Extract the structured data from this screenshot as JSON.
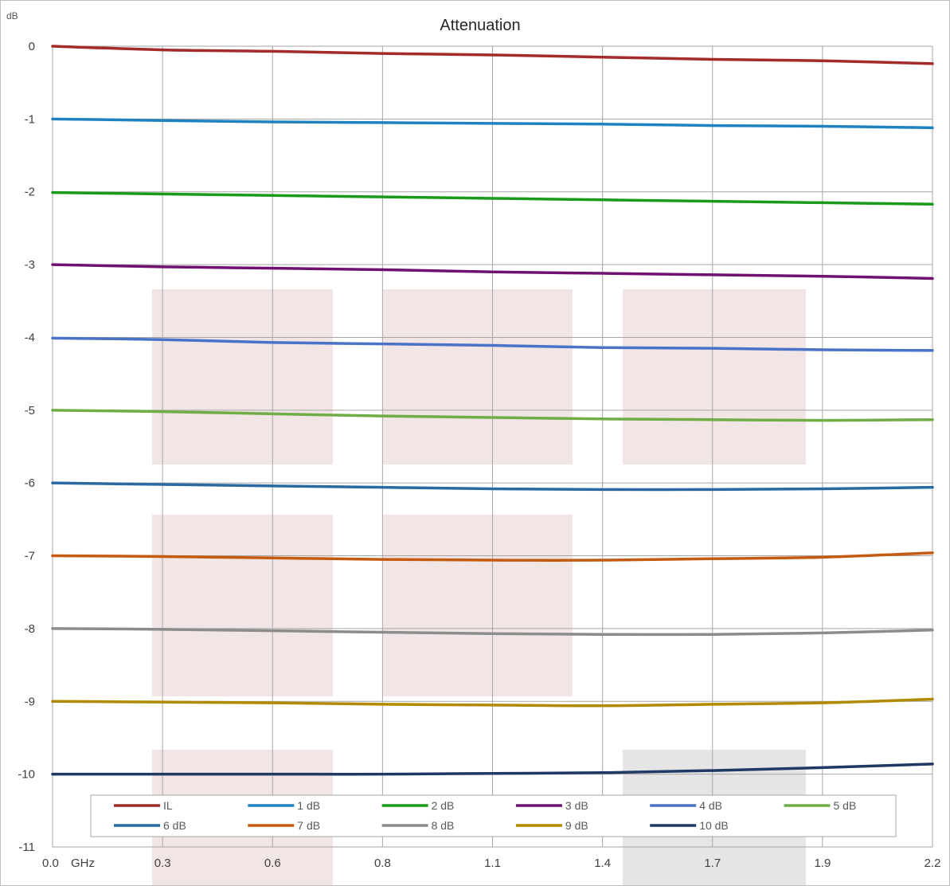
{
  "chart_data": {
    "type": "line",
    "title": "Attenuation",
    "ylabel": "dB",
    "x_unit_label": "GHz",
    "ylim": [
      -11,
      0
    ],
    "y_ticks": [
      "0",
      "-1",
      "-2",
      "-3",
      "-4",
      "-5",
      "-6",
      "-7",
      "-8",
      "-9",
      "-10",
      "-11"
    ],
    "x_ticks": [
      "0.0",
      "0.3",
      "0.6",
      "0.8",
      "1.1",
      "1.4",
      "1.7",
      "1.9",
      "2.2"
    ],
    "grid": true,
    "legend_position": "bottom",
    "x": [
      0.0,
      0.275,
      0.55,
      0.825,
      1.1,
      1.375,
      1.65,
      1.925,
      2.2
    ],
    "series": [
      {
        "name": "IL",
        "color": "#a52a2a",
        "values": [
          0.0,
          -0.05,
          -0.07,
          -0.1,
          -0.12,
          -0.15,
          -0.18,
          -0.2,
          -0.24
        ]
      },
      {
        "name": "1 dB",
        "color": "#1f82c0",
        "values": [
          -1.0,
          -1.02,
          -1.04,
          -1.05,
          -1.06,
          -1.07,
          -1.09,
          -1.1,
          -1.12
        ]
      },
      {
        "name": "2 dB",
        "color": "#1a9a1a",
        "values": [
          -2.01,
          -2.03,
          -2.05,
          -2.07,
          -2.09,
          -2.11,
          -2.13,
          -2.15,
          -2.17
        ]
      },
      {
        "name": "3 dB",
        "color": "#701070",
        "values": [
          -3.0,
          -3.03,
          -3.05,
          -3.07,
          -3.1,
          -3.12,
          -3.14,
          -3.16,
          -3.19
        ]
      },
      {
        "name": "4 dB",
        "color": "#4a73c8",
        "values": [
          -4.01,
          -4.03,
          -4.07,
          -4.09,
          -4.11,
          -4.14,
          -4.15,
          -4.17,
          -4.18
        ]
      },
      {
        "name": "5 dB",
        "color": "#70ad47",
        "values": [
          -5.0,
          -5.02,
          -5.05,
          -5.08,
          -5.1,
          -5.12,
          -5.13,
          -5.14,
          -5.13
        ]
      },
      {
        "name": "6 dB",
        "color": "#2a6aa0",
        "values": [
          -6.0,
          -6.02,
          -6.04,
          -6.06,
          -6.08,
          -6.09,
          -6.09,
          -6.08,
          -6.06
        ]
      },
      {
        "name": "7 dB",
        "color": "#c55a11",
        "values": [
          -7.0,
          -7.01,
          -7.03,
          -7.05,
          -7.06,
          -7.06,
          -7.04,
          -7.02,
          -6.96
        ]
      },
      {
        "name": "8 dB",
        "color": "#8c8c8c",
        "values": [
          -8.0,
          -8.01,
          -8.03,
          -8.05,
          -8.07,
          -8.08,
          -8.08,
          -8.06,
          -8.02
        ]
      },
      {
        "name": "9 dB",
        "color": "#b08a00",
        "values": [
          -9.0,
          -9.01,
          -9.02,
          -9.04,
          -9.05,
          -9.06,
          -9.04,
          -9.02,
          -8.97
        ]
      },
      {
        "name": "10 dB",
        "color": "#203864",
        "values": [
          -10.0,
          -10.0,
          -10.0,
          -10.0,
          -9.99,
          -9.98,
          -9.95,
          -9.91,
          -9.86
        ]
      }
    ]
  }
}
